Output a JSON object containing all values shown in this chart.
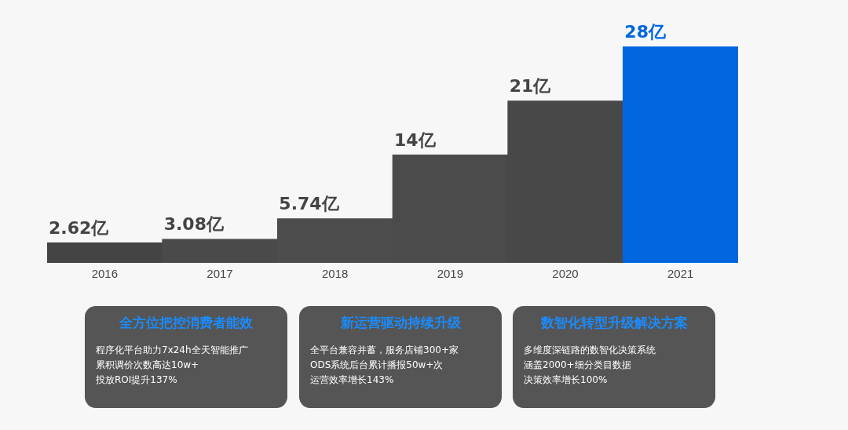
{
  "chart_data": [
    {
      "type": "bar",
      "categories": [
        "2016",
        "2017",
        "2018",
        "2019",
        "2020",
        "2021"
      ],
      "values": [
        2.62,
        3.08,
        5.74,
        14,
        21,
        28
      ],
      "value_labels": [
        "2.62亿",
        "3.08亿",
        "5.74亿",
        "14亿",
        "21亿",
        "28亿"
      ],
      "colors": [
        "#444444",
        "#4a4a4a",
        "#4d4d4d",
        "#4b4b4b",
        "#484848",
        "#0066e0"
      ],
      "grid": false,
      "legend": false
    },
    {
      "type": "other",
      "title": "全方位把控消费者能效",
      "annotations": [
        "程序化平台助力7x24h全天智能推广",
        "累积调价次数高达10w+",
        "投放ROI提升137%"
      ]
    },
    {
      "type": "other",
      "title": "新运营驱动持续升级",
      "annotations": [
        "全平台兼容并蓄，服务店铺300+家",
        "ODS系统后台累计播报50w+次",
        "运营效率增长143%"
      ]
    },
    {
      "type": "other",
      "title": "数智化转型升级解决方案",
      "annotations": [
        "多维度深链路的数智化决策系统",
        "涵盖2000+细分类目数据",
        "决策效率增长100%"
      ]
    }
  ]
}
